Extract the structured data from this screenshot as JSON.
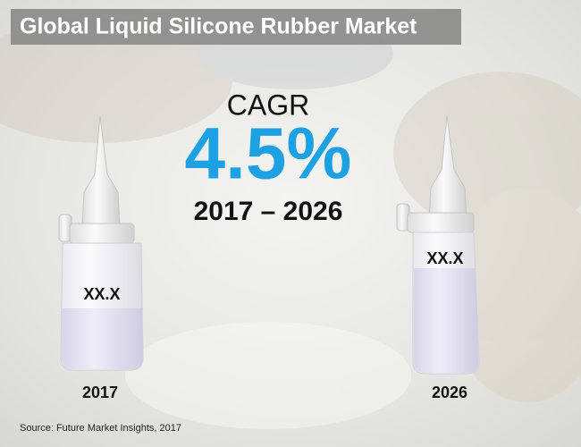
{
  "header": {
    "title": "Global Liquid Silicone Rubber Market"
  },
  "cagr": {
    "label": "CAGR",
    "value": "4.5%",
    "period": "2017 – 2026"
  },
  "bottles": [
    {
      "label": "XX.X",
      "year": "2017"
    },
    {
      "label": "XX.X",
      "year": "2026"
    }
  ],
  "source": "Source: Future Market Insights, 2017"
}
